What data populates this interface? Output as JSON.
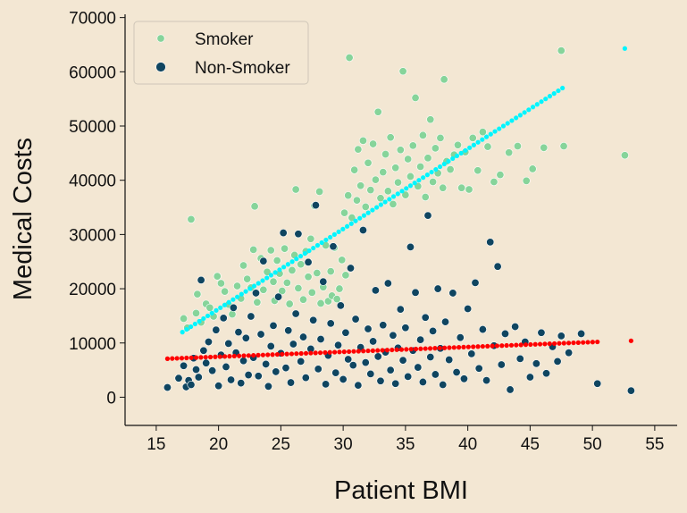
{
  "chart_data": {
    "type": "scatter",
    "xlabel": "Patient BMI",
    "ylabel": "Medical Costs",
    "xlim": [
      12.5,
      56.8
    ],
    "ylim": [
      -5200,
      70600
    ],
    "xticks": [
      15,
      20,
      25,
      30,
      35,
      40,
      45,
      50,
      55
    ],
    "yticks": [
      0,
      10000,
      20000,
      30000,
      40000,
      50000,
      60000,
      70000
    ],
    "grid": false,
    "legend": {
      "position": "top-left"
    },
    "series": [
      {
        "name": "Smoker",
        "color": "#86d49a",
        "points": [
          [
            17.2,
            14500
          ],
          [
            17.5,
            12800
          ],
          [
            17.8,
            32800
          ],
          [
            18.2,
            15500
          ],
          [
            18.3,
            19000
          ],
          [
            18.6,
            13800
          ],
          [
            19.0,
            17200
          ],
          [
            19.3,
            16500
          ],
          [
            19.6,
            14900
          ],
          [
            19.9,
            22300
          ],
          [
            20.2,
            21000
          ],
          [
            20.5,
            19500
          ],
          [
            20.8,
            17100
          ],
          [
            21.1,
            15300
          ],
          [
            21.5,
            20500
          ],
          [
            21.8,
            18200
          ],
          [
            22.0,
            24300
          ],
          [
            22.3,
            21800
          ],
          [
            22.6,
            20200
          ],
          [
            22.8,
            27200
          ],
          [
            22.9,
            35200
          ],
          [
            23.1,
            17500
          ],
          [
            23.4,
            25600
          ],
          [
            23.6,
            19800
          ],
          [
            23.9,
            23100
          ],
          [
            24.2,
            27100
          ],
          [
            24.4,
            21300
          ],
          [
            24.5,
            17800
          ],
          [
            24.7,
            25200
          ],
          [
            24.9,
            22800
          ],
          [
            25.1,
            19600
          ],
          [
            25.3,
            27400
          ],
          [
            25.5,
            21100
          ],
          [
            25.7,
            17200
          ],
          [
            25.9,
            23400
          ],
          [
            26.1,
            26200
          ],
          [
            26.2,
            38300
          ],
          [
            26.4,
            20100
          ],
          [
            26.6,
            24500
          ],
          [
            26.8,
            18000
          ],
          [
            27.0,
            26900
          ],
          [
            27.2,
            22200
          ],
          [
            27.4,
            29200
          ],
          [
            27.5,
            19300
          ],
          [
            27.7,
            35300
          ],
          [
            27.9,
            22900
          ],
          [
            28.1,
            37900
          ],
          [
            28.2,
            17300
          ],
          [
            28.4,
            20300
          ],
          [
            28.6,
            28000
          ],
          [
            28.8,
            17700
          ],
          [
            29.0,
            23200
          ],
          [
            29.1,
            18700
          ],
          [
            29.3,
            27600
          ],
          [
            29.5,
            18100
          ],
          [
            29.7,
            20000
          ],
          [
            29.9,
            25300
          ],
          [
            30.1,
            34000
          ],
          [
            30.2,
            22500
          ],
          [
            30.4,
            37200
          ],
          [
            30.5,
            62600
          ],
          [
            30.7,
            33100
          ],
          [
            30.9,
            41900
          ],
          [
            31.1,
            36300
          ],
          [
            31.2,
            45700
          ],
          [
            31.4,
            39000
          ],
          [
            31.6,
            47300
          ],
          [
            31.8,
            35100
          ],
          [
            32.0,
            43200
          ],
          [
            32.2,
            38200
          ],
          [
            32.4,
            46700
          ],
          [
            32.6,
            40100
          ],
          [
            32.8,
            52600
          ],
          [
            33.0,
            36700
          ],
          [
            33.2,
            41500
          ],
          [
            33.4,
            44800
          ],
          [
            33.6,
            38000
          ],
          [
            33.8,
            47900
          ],
          [
            34.0,
            35600
          ],
          [
            34.2,
            42300
          ],
          [
            34.4,
            39600
          ],
          [
            34.6,
            45600
          ],
          [
            34.8,
            60100
          ],
          [
            35.0,
            37300
          ],
          [
            35.2,
            43900
          ],
          [
            35.4,
            40700
          ],
          [
            35.6,
            46400
          ],
          [
            35.8,
            55200
          ],
          [
            36.0,
            38900
          ],
          [
            36.2,
            42500
          ],
          [
            36.4,
            48300
          ],
          [
            36.6,
            36900
          ],
          [
            36.8,
            44100
          ],
          [
            37.0,
            51200
          ],
          [
            37.2,
            39700
          ],
          [
            37.4,
            45900
          ],
          [
            37.6,
            41300
          ],
          [
            37.8,
            47800
          ],
          [
            38.0,
            38600
          ],
          [
            38.1,
            58600
          ],
          [
            38.3,
            43500
          ],
          [
            38.6,
            42000
          ],
          [
            38.9,
            44700
          ],
          [
            39.2,
            46500
          ],
          [
            39.5,
            38600
          ],
          [
            39.8,
            45200
          ],
          [
            40.1,
            38300
          ],
          [
            40.4,
            47800
          ],
          [
            40.8,
            41800
          ],
          [
            41.2,
            48900
          ],
          [
            41.6,
            46200
          ],
          [
            42.1,
            39700
          ],
          [
            42.6,
            41000
          ],
          [
            43.3,
            45100
          ],
          [
            44.0,
            46300
          ],
          [
            44.7,
            39900
          ],
          [
            45.2,
            42100
          ],
          [
            46.1,
            46000
          ],
          [
            47.5,
            63900
          ],
          [
            47.7,
            46300
          ],
          [
            52.6,
            44600
          ]
        ]
      },
      {
        "name": "Non-Smoker",
        "color": "#0f4560",
        "points": [
          [
            15.9,
            1800
          ],
          [
            16.8,
            3500
          ],
          [
            17.2,
            5800
          ],
          [
            17.4,
            1900
          ],
          [
            17.6,
            3100
          ],
          [
            17.8,
            2300
          ],
          [
            18.0,
            7200
          ],
          [
            18.2,
            5100
          ],
          [
            18.4,
            3700
          ],
          [
            18.6,
            21600
          ],
          [
            18.8,
            8600
          ],
          [
            19.0,
            6300
          ],
          [
            19.2,
            10200
          ],
          [
            19.5,
            4900
          ],
          [
            19.8,
            12400
          ],
          [
            20.0,
            2100
          ],
          [
            20.2,
            7800
          ],
          [
            20.4,
            14600
          ],
          [
            20.6,
            5600
          ],
          [
            20.8,
            9900
          ],
          [
            21.0,
            3200
          ],
          [
            21.2,
            16500
          ],
          [
            21.4,
            8200
          ],
          [
            21.6,
            12000
          ],
          [
            21.8,
            2600
          ],
          [
            22.0,
            6700
          ],
          [
            22.2,
            10900
          ],
          [
            22.4,
            4100
          ],
          [
            22.6,
            14900
          ],
          [
            22.8,
            7300
          ],
          [
            23.0,
            19200
          ],
          [
            23.2,
            3900
          ],
          [
            23.4,
            11600
          ],
          [
            23.6,
            25100
          ],
          [
            23.8,
            6100
          ],
          [
            24.0,
            2000
          ],
          [
            24.2,
            9400
          ],
          [
            24.4,
            13200
          ],
          [
            24.6,
            4700
          ],
          [
            24.8,
            18500
          ],
          [
            25.0,
            8100
          ],
          [
            25.2,
            30300
          ],
          [
            25.4,
            5400
          ],
          [
            25.6,
            12300
          ],
          [
            25.8,
            2700
          ],
          [
            26.0,
            9800
          ],
          [
            26.2,
            15400
          ],
          [
            26.4,
            30100
          ],
          [
            26.6,
            6600
          ],
          [
            26.8,
            11100
          ],
          [
            27.0,
            3600
          ],
          [
            27.2,
            24900
          ],
          [
            27.4,
            8900
          ],
          [
            27.6,
            14200
          ],
          [
            27.8,
            35400
          ],
          [
            28.0,
            5200
          ],
          [
            28.2,
            10700
          ],
          [
            28.4,
            21300
          ],
          [
            28.6,
            2400
          ],
          [
            28.8,
            7700
          ],
          [
            29.0,
            13600
          ],
          [
            29.2,
            27800
          ],
          [
            29.4,
            4500
          ],
          [
            29.6,
            9600
          ],
          [
            29.8,
            16900
          ],
          [
            30.0,
            3300
          ],
          [
            30.2,
            11900
          ],
          [
            30.4,
            7000
          ],
          [
            30.6,
            23800
          ],
          [
            30.8,
            5900
          ],
          [
            31.0,
            14400
          ],
          [
            31.2,
            2200
          ],
          [
            31.4,
            9200
          ],
          [
            31.6,
            30800
          ],
          [
            31.8,
            6400
          ],
          [
            32.0,
            12600
          ],
          [
            32.2,
            4300
          ],
          [
            32.4,
            10300
          ],
          [
            32.6,
            19700
          ],
          [
            32.8,
            7500
          ],
          [
            33.0,
            3000
          ],
          [
            33.2,
            13300
          ],
          [
            33.4,
            8300
          ],
          [
            33.6,
            21000
          ],
          [
            33.8,
            5000
          ],
          [
            34.0,
            11400
          ],
          [
            34.2,
            2500
          ],
          [
            34.4,
            9100
          ],
          [
            34.6,
            16200
          ],
          [
            34.8,
            6800
          ],
          [
            35.0,
            12800
          ],
          [
            35.2,
            3800
          ],
          [
            35.4,
            27700
          ],
          [
            35.6,
            8600
          ],
          [
            35.8,
            19300
          ],
          [
            36.0,
            5500
          ],
          [
            36.2,
            10600
          ],
          [
            36.4,
            2800
          ],
          [
            36.6,
            14700
          ],
          [
            36.8,
            33500
          ],
          [
            37.0,
            7400
          ],
          [
            37.2,
            12200
          ],
          [
            37.4,
            4200
          ],
          [
            37.6,
            20000
          ],
          [
            37.8,
            9000
          ],
          [
            38.0,
            2300
          ],
          [
            38.2,
            13900
          ],
          [
            38.5,
            6900
          ],
          [
            38.8,
            19200
          ],
          [
            39.1,
            4600
          ],
          [
            39.4,
            11000
          ],
          [
            39.7,
            3400
          ],
          [
            40.0,
            16300
          ],
          [
            40.3,
            8000
          ],
          [
            40.6,
            21100
          ],
          [
            40.9,
            5300
          ],
          [
            41.2,
            12500
          ],
          [
            41.5,
            3100
          ],
          [
            41.8,
            28600
          ],
          [
            42.1,
            9500
          ],
          [
            42.4,
            24100
          ],
          [
            42.7,
            6000
          ],
          [
            43.0,
            11700
          ],
          [
            43.4,
            1400
          ],
          [
            43.8,
            13000
          ],
          [
            44.2,
            7100
          ],
          [
            44.6,
            10200
          ],
          [
            45.0,
            3700
          ],
          [
            45.5,
            6200
          ],
          [
            45.9,
            11900
          ],
          [
            46.3,
            4400
          ],
          [
            46.8,
            9300
          ],
          [
            47.2,
            6600
          ],
          [
            47.5,
            11300
          ],
          [
            48.1,
            8200
          ],
          [
            49.1,
            11700
          ],
          [
            50.4,
            2500
          ],
          [
            53.1,
            1200
          ]
        ]
      }
    ],
    "trend_lines": [
      {
        "series": "Smoker",
        "color": "#00f5ff",
        "x": [
          17.1,
          47.6
        ],
        "y": [
          12000,
          57000
        ],
        "extra_point": [
          52.6,
          64300
        ]
      },
      {
        "series": "Non-Smoker",
        "color": "#ff0000",
        "x": [
          15.9,
          50.4
        ],
        "y": [
          7100,
          10200
        ],
        "extra_point": [
          53.1,
          10400
        ]
      }
    ]
  }
}
